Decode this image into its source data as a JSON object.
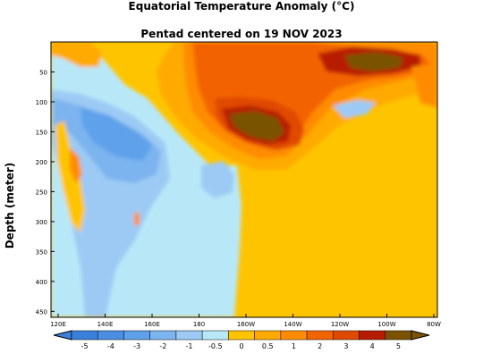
{
  "chart_data": {
    "type": "heatmap",
    "title": "Equatorial Temperature Anomaly (°C)",
    "subtitle": "Pentad centered on 19 NOV 2023",
    "xlabel": "",
    "ylabel": "Depth (meter)",
    "x_ticks": [
      "120E",
      "140E",
      "160E",
      "180",
      "160W",
      "140W",
      "120W",
      "100W",
      "80W"
    ],
    "y_ticks": [
      "50",
      "100",
      "150",
      "200",
      "250",
      "300",
      "350",
      "400",
      "450"
    ],
    "y_range": [
      0,
      460
    ],
    "colorbar_labels": [
      "-5",
      "-4",
      "-3",
      "-2",
      "-1",
      "-0.5",
      "0",
      "0.5",
      "1",
      "2",
      "3",
      "4",
      "5"
    ],
    "colorbar_colors": [
      "#3a7fd9",
      "#4a8fe4",
      "#5ea1ea",
      "#7cb4ef",
      "#9ccaf4",
      "#b8e8f8",
      "#ffc400",
      "#ffaa00",
      "#ff8c00",
      "#f26400",
      "#e04a00",
      "#b81c00",
      "#7a5200"
    ],
    "anomaly_regions": [
      {
        "label": "warm core near 150W, 120-160m",
        "value": 5
      },
      {
        "label": "warm core near 105W, 40-70m",
        "value": 5
      },
      {
        "label": "cool lobe 130E-175E, 80-300m",
        "value": -3
      },
      {
        "label": "eastern Pacific subsurface",
        "value": 0.5
      }
    ]
  }
}
